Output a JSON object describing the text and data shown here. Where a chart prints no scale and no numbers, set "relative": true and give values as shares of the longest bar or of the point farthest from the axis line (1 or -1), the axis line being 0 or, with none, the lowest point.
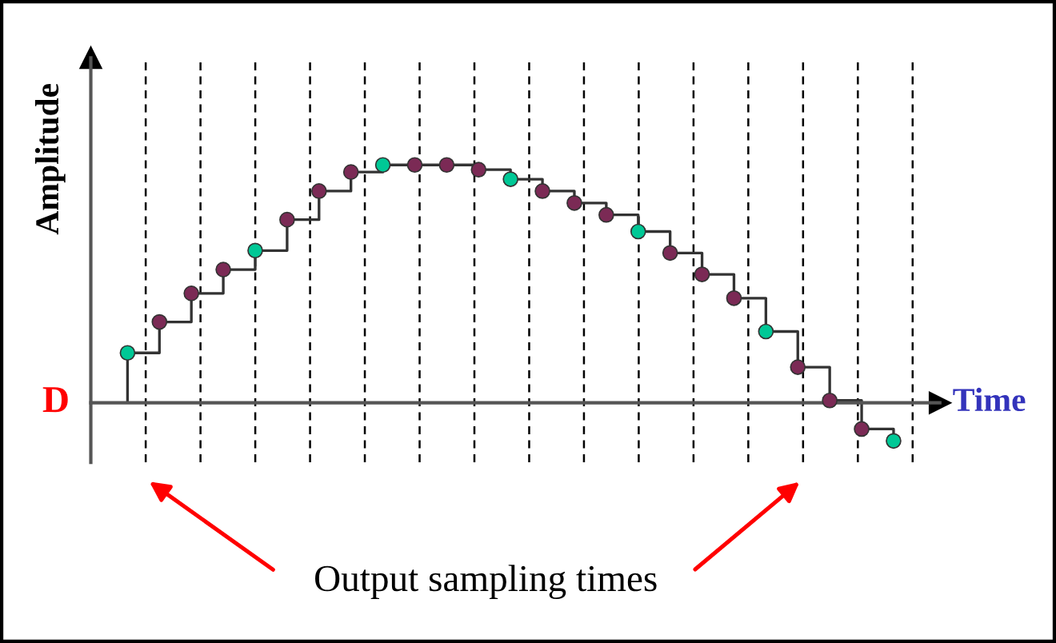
{
  "chart_data": {
    "type": "step",
    "relative": true,
    "xlabel": "Time",
    "ylabel": "Amplitude",
    "marker": "circle",
    "categories": [
      null,
      null,
      null,
      null,
      null,
      null,
      null,
      null,
      null,
      null,
      null,
      null,
      null,
      null,
      null,
      null,
      null,
      null,
      null,
      null,
      null,
      null,
      null,
      null,
      null
    ],
    "series": [
      {
        "color": "#333333",
        "values": [
          0.21,
          0.34,
          0.46,
          0.56,
          0.64,
          0.77,
          0.89,
          0.97,
          1,
          1,
          1,
          0.98,
          0.94,
          0.89,
          0.84,
          0.79,
          0.72,
          0.63,
          0.54,
          0.44,
          0.3,
          0.15,
          0.01,
          -0.11,
          -0.16
        ],
        "colors": [
          "#00c896",
          "#7b2a55",
          "#7b2a55",
          "#7b2a55",
          "#00c896",
          "#7b2a55",
          "#7b2a55",
          "#7b2a55",
          "#00c896",
          "#7b2a55",
          "#7b2a55",
          "#7b2a55",
          "#00c896",
          "#7b2a55",
          "#7b2a55",
          "#7b2a55",
          "#00c896",
          "#7b2a55",
          "#7b2a55",
          "#7b2a55",
          "#00c896",
          "#7b2a55",
          "#7b2a55",
          "#7b2a55",
          "#00c896"
        ]
      }
    ],
    "grid": "x",
    "annotations": [
      "D",
      "Output sampling times"
    ]
  }
}
